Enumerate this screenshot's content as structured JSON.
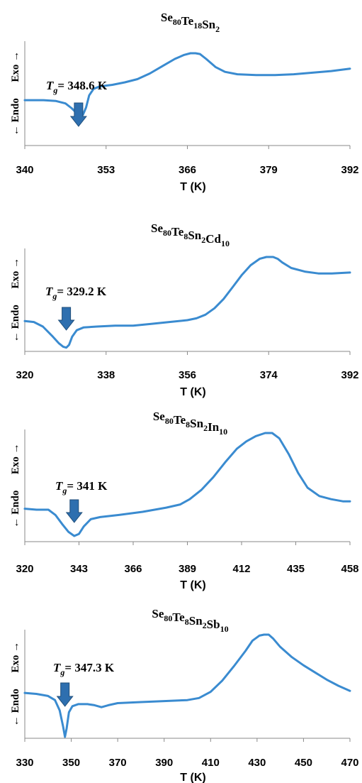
{
  "colors": {
    "curve": "#3a8bd0",
    "arrow_fill": "#2e6faf",
    "arrow_stroke": "#1f4e7a",
    "axis": "#8a8a8a",
    "text": "#000000"
  },
  "y_label": {
    "endo": "← Endo",
    "exo": "Exo →"
  },
  "chart_data": [
    {
      "type": "line",
      "title_parts": [
        {
          "el": "Se",
          "sub": "80"
        },
        {
          "el": "Te",
          "sub": "18"
        },
        {
          "el": "Sn",
          "sub": "2"
        }
      ],
      "xlabel": "T (K)",
      "ylabel": "← Endo   Exo →",
      "xlim": [
        340,
        392
      ],
      "ylim": [
        0,
        1
      ],
      "xticks": [
        340,
        353,
        366,
        379,
        392
      ],
      "tg": {
        "symbol": "T",
        "sub": "g",
        "value": "= 348.6 K",
        "x": 348.6
      },
      "series": [
        {
          "x": [
            340,
            343,
            345,
            346.5,
            347.5,
            348.3,
            348.8,
            349.3,
            349.8,
            350.3,
            351,
            352,
            353,
            354,
            356,
            358,
            360,
            362,
            364,
            365.5,
            366.5,
            367.3,
            368,
            369,
            370.5,
            372,
            374,
            377,
            380,
            383,
            386,
            389,
            392
          ],
          "y": [
            0.42,
            0.42,
            0.41,
            0.38,
            0.32,
            0.26,
            0.23,
            0.24,
            0.33,
            0.48,
            0.56,
            0.59,
            0.6,
            0.61,
            0.64,
            0.68,
            0.75,
            0.84,
            0.93,
            0.98,
            1.0,
            1.0,
            0.99,
            0.93,
            0.83,
            0.77,
            0.74,
            0.73,
            0.73,
            0.74,
            0.76,
            0.78,
            0.81
          ]
        }
      ]
    },
    {
      "type": "line",
      "title_parts": [
        {
          "el": "Se",
          "sub": "80"
        },
        {
          "el": "Te",
          "sub": "8"
        },
        {
          "el": "Sn",
          "sub": "2"
        },
        {
          "el": "Cd",
          "sub": "10"
        }
      ],
      "xlabel": "T (K)",
      "ylabel": "← Endo   Exo →",
      "xlim": [
        320,
        392
      ],
      "ylim": [
        0,
        1
      ],
      "xticks": [
        320,
        338,
        356,
        374,
        392
      ],
      "tg": {
        "symbol": "T",
        "sub": "g",
        "value": "= 329.2 K",
        "x": 329.2
      },
      "series": [
        {
          "x": [
            320,
            322,
            324,
            326,
            327.5,
            328.5,
            329.2,
            329.8,
            330.5,
            331.5,
            333,
            336,
            340,
            344,
            348,
            352,
            356,
            358,
            360,
            362,
            364,
            366,
            368,
            370,
            372,
            373.5,
            375,
            376,
            377,
            379,
            382,
            385,
            388,
            392
          ],
          "y": [
            0.3,
            0.29,
            0.24,
            0.14,
            0.06,
            0.02,
            0.01,
            0.04,
            0.13,
            0.2,
            0.23,
            0.24,
            0.25,
            0.25,
            0.27,
            0.29,
            0.31,
            0.33,
            0.37,
            0.44,
            0.54,
            0.67,
            0.8,
            0.91,
            0.98,
            1.0,
            1.0,
            0.98,
            0.94,
            0.88,
            0.84,
            0.82,
            0.82,
            0.83
          ]
        }
      ]
    },
    {
      "type": "line",
      "title_parts": [
        {
          "el": "Se",
          "sub": "80"
        },
        {
          "el": "Te",
          "sub": "8"
        },
        {
          "el": "Sn",
          "sub": "2"
        },
        {
          "el": "In",
          "sub": "10"
        }
      ],
      "xlabel": "T (K)",
      "ylabel": "← Endo   Exo →",
      "xlim": [
        320,
        458
      ],
      "ylim": [
        0,
        1
      ],
      "xticks": [
        320,
        343,
        366,
        389,
        412,
        435,
        458
      ],
      "tg": {
        "symbol": "T",
        "sub": "g",
        "value": "= 341 K",
        "x": 341
      },
      "series": [
        {
          "x": [
            320,
            325,
            330,
            333,
            336,
            338.5,
            341,
            343,
            345,
            348,
            352,
            360,
            370,
            380,
            386,
            390,
            395,
            400,
            405,
            410,
            414,
            418,
            422,
            425,
            428,
            432,
            436,
            440,
            445,
            450,
            455,
            458
          ],
          "y": [
            0.28,
            0.27,
            0.27,
            0.22,
            0.13,
            0.06,
            0.02,
            0.04,
            0.11,
            0.18,
            0.2,
            0.22,
            0.25,
            0.29,
            0.32,
            0.37,
            0.46,
            0.58,
            0.72,
            0.85,
            0.92,
            0.97,
            1.0,
            1.0,
            0.95,
            0.8,
            0.62,
            0.48,
            0.4,
            0.37,
            0.35,
            0.35
          ]
        }
      ]
    },
    {
      "type": "line",
      "title_parts": [
        {
          "el": "Se",
          "sub": "80"
        },
        {
          "el": "Te",
          "sub": "8"
        },
        {
          "el": "Sn",
          "sub": "2"
        },
        {
          "el": "Sb",
          "sub": "10"
        }
      ],
      "xlabel": "T (K)",
      "ylabel": "← Endo   Exo →",
      "xlim": [
        330,
        470
      ],
      "ylim": [
        0,
        1
      ],
      "xticks": [
        330,
        350,
        370,
        390,
        410,
        430,
        450,
        470
      ],
      "tg": {
        "symbol": "T",
        "sub": "g",
        "value": "= 347.3 K",
        "x": 347.3
      },
      "series": [
        {
          "x": [
            330,
            335,
            340,
            343,
            345,
            346.5,
            347.3,
            348,
            349,
            350.5,
            353,
            357,
            360,
            363,
            366,
            370,
            380,
            390,
            400,
            405,
            410,
            415,
            420,
            425,
            428,
            431,
            433,
            435,
            437,
            440,
            445,
            450,
            455,
            460,
            465,
            470
          ],
          "y": [
            0.43,
            0.42,
            0.4,
            0.36,
            0.26,
            0.1,
            0.0,
            0.08,
            0.24,
            0.3,
            0.32,
            0.32,
            0.31,
            0.29,
            0.31,
            0.33,
            0.34,
            0.35,
            0.36,
            0.38,
            0.44,
            0.55,
            0.69,
            0.84,
            0.94,
            0.99,
            1.0,
            1.0,
            0.96,
            0.88,
            0.78,
            0.7,
            0.63,
            0.56,
            0.5,
            0.45
          ]
        }
      ]
    }
  ]
}
